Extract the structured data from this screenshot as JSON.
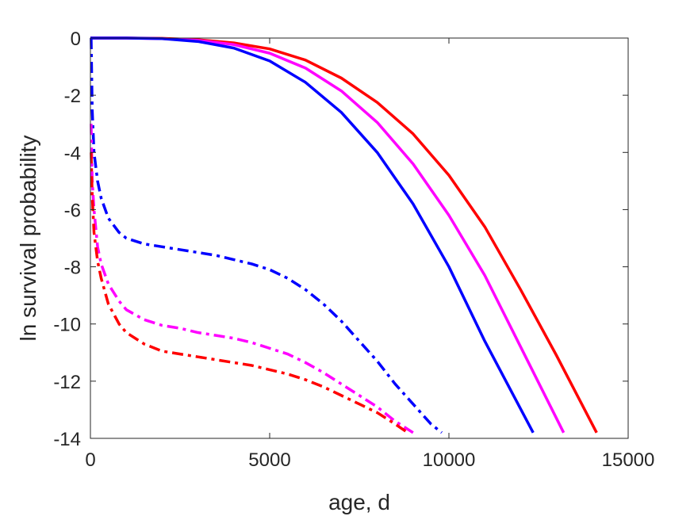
{
  "chart_data": {
    "type": "line",
    "title": "",
    "xlabel": "age, d",
    "ylabel": "ln survival probability",
    "xlim": [
      0,
      15000
    ],
    "ylim": [
      -14,
      0
    ],
    "xticks": [
      0,
      5000,
      10000,
      15000
    ],
    "yticks": [
      0,
      -2,
      -4,
      -6,
      -8,
      -10,
      -12,
      -14
    ],
    "xtick_labels": [
      "0",
      "5000",
      "10000",
      "15000"
    ],
    "ytick_labels": [
      "0",
      "-2",
      "-4",
      "-6",
      "-8",
      "-10",
      "-12",
      "-14"
    ],
    "grid": false,
    "legend": "none",
    "series": [
      {
        "color": "#ff0000",
        "style": "solid",
        "x": [
          0,
          1000,
          2000,
          3000,
          4000,
          5000,
          6000,
          7000,
          8000,
          9000,
          10000,
          11000,
          12000,
          13000,
          14120
        ],
        "y": [
          0,
          0,
          -0.01,
          -0.06,
          -0.17,
          -0.38,
          -0.77,
          -1.4,
          -2.25,
          -3.35,
          -4.8,
          -6.6,
          -8.8,
          -11.1,
          -13.8
        ]
      },
      {
        "color": "#ff00ff",
        "style": "solid",
        "x": [
          0,
          1000,
          2000,
          3000,
          4000,
          5000,
          6000,
          7000,
          8000,
          9000,
          10000,
          11000,
          12000,
          13200
        ],
        "y": [
          0,
          0,
          -0.02,
          -0.08,
          -0.23,
          -0.53,
          -1.05,
          -1.85,
          -2.95,
          -4.4,
          -6.2,
          -8.3,
          -10.8,
          -13.8
        ]
      },
      {
        "color": "#0000ff",
        "style": "solid",
        "x": [
          0,
          1000,
          2000,
          3000,
          4000,
          5000,
          6000,
          7000,
          8000,
          9000,
          10000,
          11000,
          12350
        ],
        "y": [
          0,
          0,
          -0.02,
          -0.12,
          -0.35,
          -0.8,
          -1.55,
          -2.6,
          -4.0,
          -5.8,
          -8.0,
          -10.6,
          -13.8
        ]
      },
      {
        "color": "#0000ff",
        "style": "dashdot",
        "x": [
          20,
          50,
          100,
          200,
          300,
          500,
          800,
          1000,
          1500,
          2000,
          2500,
          3000,
          3500,
          4000,
          4500,
          5000,
          5500,
          6000,
          6500,
          7000,
          7500,
          8000,
          8500,
          9000,
          9500,
          9800
        ],
        "y": [
          0,
          -2.5,
          -4.0,
          -5.0,
          -5.6,
          -6.3,
          -6.8,
          -7.0,
          -7.2,
          -7.3,
          -7.4,
          -7.5,
          -7.6,
          -7.75,
          -7.9,
          -8.1,
          -8.4,
          -8.8,
          -9.3,
          -9.9,
          -10.6,
          -11.3,
          -12.1,
          -12.8,
          -13.5,
          -13.8
        ]
      },
      {
        "color": "#ff00ff",
        "style": "dashdot",
        "x": [
          20,
          50,
          100,
          200,
          300,
          500,
          800,
          1000,
          1500,
          2000,
          2500,
          3000,
          3500,
          4000,
          4500,
          5000,
          5500,
          6000,
          6500,
          7000,
          7500,
          8000,
          8500,
          9000
        ],
        "y": [
          -3.0,
          -5.0,
          -6.0,
          -7.3,
          -7.9,
          -8.6,
          -9.2,
          -9.5,
          -9.85,
          -10.05,
          -10.15,
          -10.3,
          -10.4,
          -10.5,
          -10.65,
          -10.85,
          -11.05,
          -11.35,
          -11.7,
          -12.1,
          -12.5,
          -12.9,
          -13.4,
          -13.8
        ]
      },
      {
        "color": "#ff0000",
        "style": "dashdot",
        "x": [
          20,
          50,
          100,
          200,
          300,
          500,
          800,
          1000,
          1500,
          2000,
          2500,
          3000,
          3500,
          4000,
          4500,
          5000,
          5500,
          6000,
          6500,
          7000,
          7500,
          8000,
          8500,
          8850
        ],
        "y": [
          -4.0,
          -5.5,
          -6.8,
          -7.8,
          -8.4,
          -9.3,
          -10.0,
          -10.3,
          -10.7,
          -10.95,
          -11.05,
          -11.15,
          -11.25,
          -11.35,
          -11.45,
          -11.6,
          -11.75,
          -11.95,
          -12.2,
          -12.5,
          -12.8,
          -13.1,
          -13.5,
          -13.8
        ]
      }
    ]
  }
}
